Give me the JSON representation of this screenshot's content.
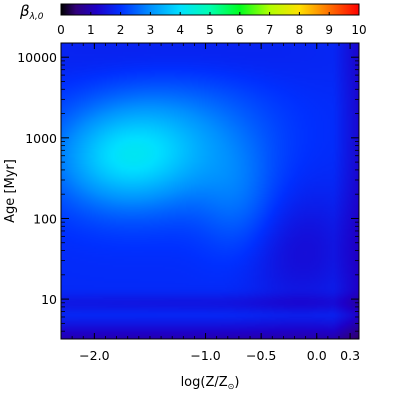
{
  "chart_data": {
    "type": "heatmap",
    "colorbar": {
      "label": "β",
      "label_sub": "λ,0",
      "min": 0,
      "max": 10,
      "ticks": [
        "0",
        "1",
        "2",
        "3",
        "4",
        "5",
        "6",
        "7",
        "8",
        "9",
        "10"
      ],
      "colormap": "rainbow",
      "position": "top"
    },
    "x_axis": {
      "label": "log(Z/Z",
      "label_suffix": ")",
      "label_symbol": "⊙",
      "range": [
        -2.3,
        0.38
      ],
      "ticks": [
        {
          "value": -2.0,
          "label": "−2.0"
        },
        {
          "value": -1.0,
          "label": "−1.0"
        },
        {
          "value": -0.5,
          "label": "−0.5"
        },
        {
          "value": 0.0,
          "label": "0.0"
        },
        {
          "value": 0.3,
          "label": "0.3"
        }
      ]
    },
    "y_axis": {
      "label": "Age",
      "unit": "[Myr]",
      "scale": "log",
      "range": [
        3.2,
        15000
      ],
      "ticks": [
        {
          "value": 10,
          "label": "10"
        },
        {
          "value": 100,
          "label": "100"
        },
        {
          "value": 1000,
          "label": "1000"
        },
        {
          "value": 10000,
          "label": "10000"
        }
      ]
    },
    "approx_field_description_values": {
      "peak_beta": 3.6,
      "peak_location": {
        "logZ": -1.75,
        "age_myr": 600
      },
      "low_age_beta": 0.6,
      "high_Z_beta": 1.6
    }
  }
}
